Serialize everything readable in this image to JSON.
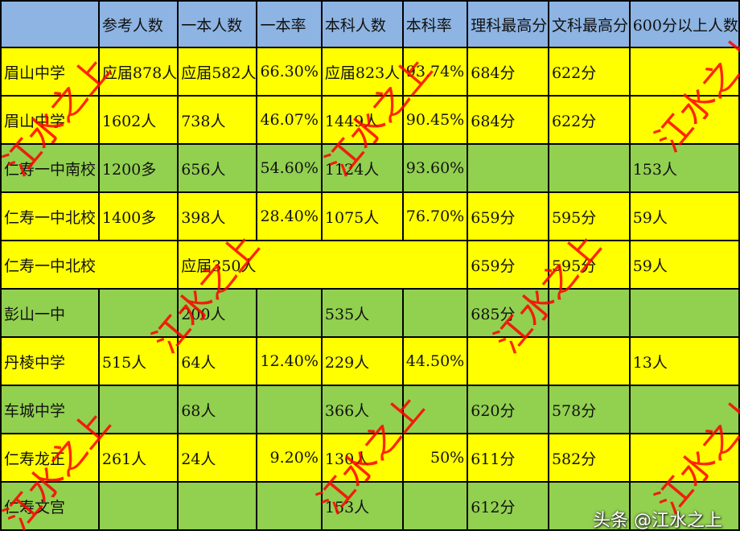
{
  "headers": [
    "",
    "参考人数",
    "一本人数",
    "一本率",
    "本科人数",
    "本科率",
    "理科最高分",
    "文科最高分",
    "600分以上人数"
  ],
  "rows": [
    {
      "color": "yellow",
      "cells": [
        "眉山中学",
        "应届878人",
        "应届582人",
        "66.30%",
        "应届823人",
        "93.74%",
        "684分",
        "622分",
        ""
      ]
    },
    {
      "color": "yellow",
      "cells": [
        "眉山中学",
        "1602人",
        "738人",
        "46.07%",
        "1449人",
        "90.45%",
        "684分",
        "622分",
        ""
      ]
    },
    {
      "color": "green",
      "cells": [
        "仁寿一中南校",
        "1200多",
        "656人",
        "54.60%",
        "1124人",
        "93.60%",
        "",
        "",
        "153人"
      ]
    },
    {
      "color": "yellow",
      "cells": [
        "仁寿一中北校",
        "1400多",
        "398人",
        "28.40%",
        "1075人",
        "76.70%",
        "659分",
        "595分",
        "59人"
      ]
    },
    {
      "color": "yellow",
      "cells": [
        "仁寿一中北校",
        "",
        "应届350人",
        "",
        "",
        "",
        "659分",
        "595分",
        "59人"
      ]
    },
    {
      "color": "green",
      "cells": [
        "彭山一中",
        "",
        "200人",
        "",
        "535人",
        "",
        "685分",
        "",
        ""
      ]
    },
    {
      "color": "yellow",
      "cells": [
        "丹棱中学",
        "515人",
        "64人",
        "12.40%",
        "229人",
        "44.50%",
        "",
        "",
        "13人"
      ]
    },
    {
      "color": "green",
      "cells": [
        "车城中学",
        "",
        "68人",
        "",
        "366人",
        "",
        "620分",
        "578分",
        ""
      ]
    },
    {
      "color": "yellow",
      "cells": [
        "仁寿龙正",
        "261人",
        "24人",
        "9.20%",
        "130人",
        "50%",
        "611分",
        "582分",
        ""
      ]
    },
    {
      "color": "green",
      "cells": [
        "仁寿文宫",
        "",
        "",
        "",
        "153人",
        "",
        "612分",
        "",
        ""
      ]
    }
  ],
  "watermark": "江水之上",
  "brand": "头条 @江水之上",
  "colors": {
    "header": "#8db4e2",
    "yellow": "#ffff00",
    "green": "#92d050",
    "watermark": "#ff0000"
  }
}
